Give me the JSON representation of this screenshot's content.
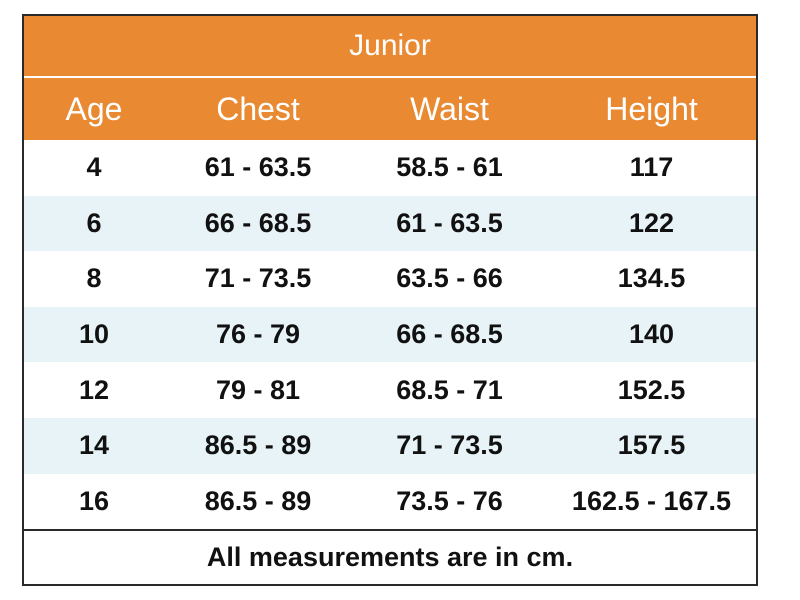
{
  "table": {
    "title": "Junior",
    "headers": [
      "Age",
      "Chest",
      "Waist",
      "Height"
    ],
    "rows": [
      [
        "4",
        "61 - 63.5",
        "58.5 - 61",
        "117"
      ],
      [
        "6",
        "66 - 68.5",
        "61 - 63.5",
        "122"
      ],
      [
        "8",
        "71 - 73.5",
        "63.5 - 66",
        "134.5"
      ],
      [
        "10",
        "76 - 79",
        "66 - 68.5",
        "140"
      ],
      [
        "12",
        "79 - 81",
        "68.5 - 71",
        "152.5"
      ],
      [
        "14",
        "86.5 - 89",
        "71 - 73.5",
        "157.5"
      ],
      [
        "16",
        "86.5 - 89",
        "73.5 - 76",
        "162.5 - 167.5"
      ]
    ],
    "footer": "All measurements are in cm."
  },
  "colors": {
    "header_bg": "#e98a32",
    "stripe_bg": "#e7f3f7",
    "border": "#2a2a2a"
  }
}
